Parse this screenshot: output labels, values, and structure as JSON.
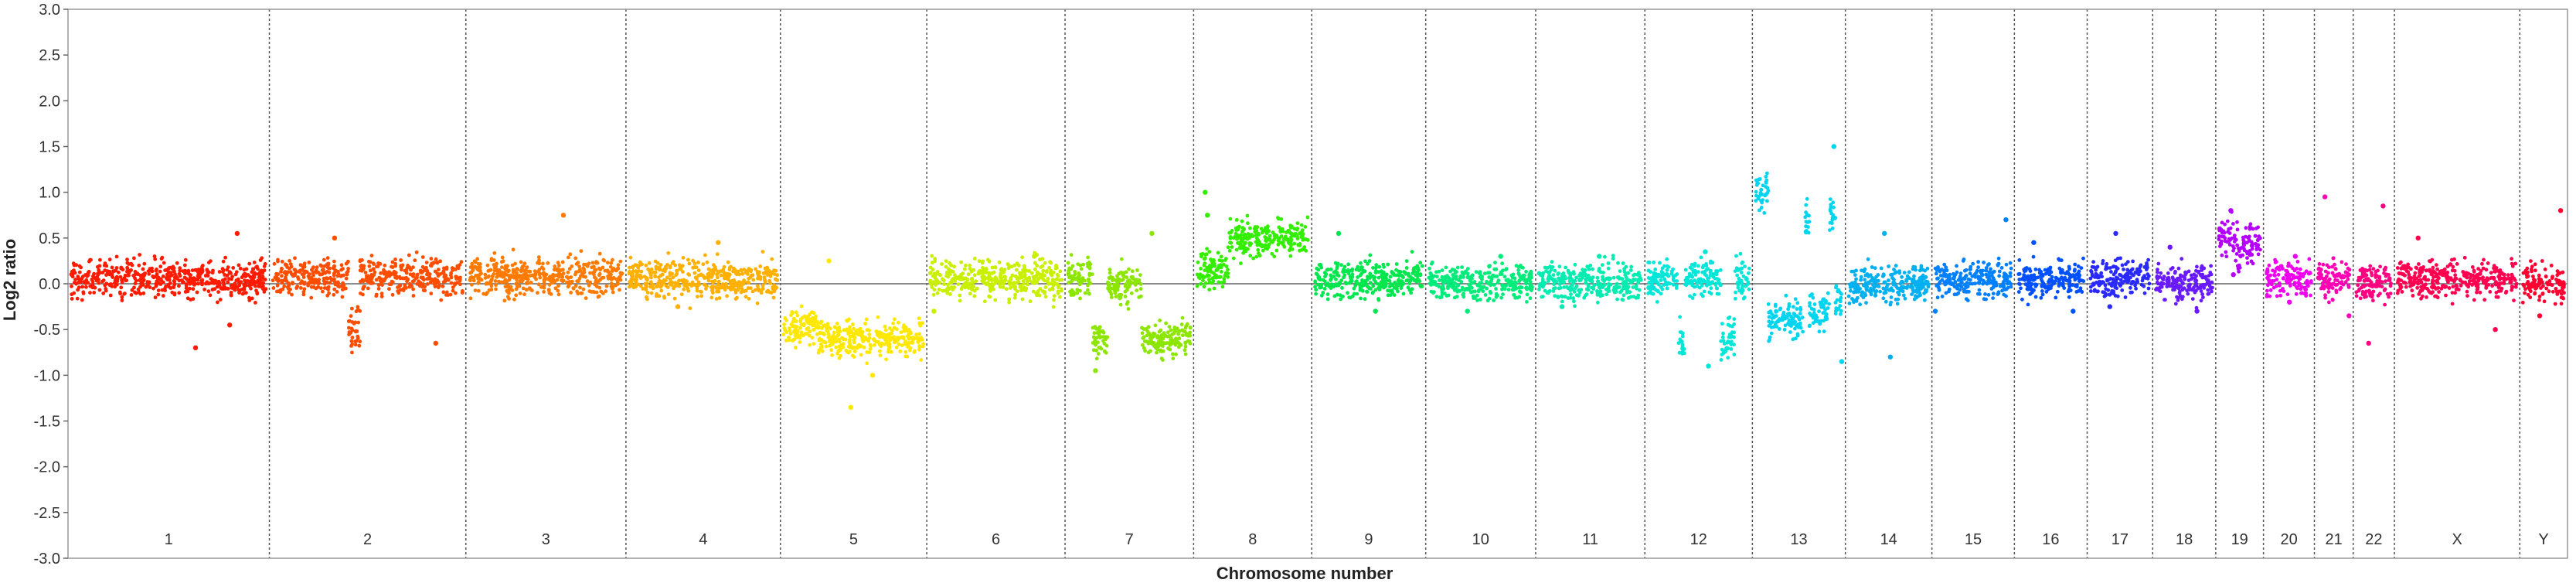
{
  "chart_data": {
    "type": "scatter",
    "xlabel": "Chromosome number",
    "ylabel": "Log2 ratio",
    "ylim": [
      -3.0,
      3.0
    ],
    "yticks": [
      "3.0",
      "2.5",
      "2.0",
      "1.5",
      "1.0",
      "0.5",
      "0.0",
      "-0.5",
      "-1.0",
      "-1.5",
      "-2.0",
      "-2.5",
      "-3.0"
    ],
    "grid": "vertical dashed chromosome separators",
    "baseline": 0.0,
    "chromosomes": [
      {
        "name": "1",
        "size": 249,
        "color": "#ff1a00",
        "segments": [
          {
            "start": 0.0,
            "end": 1.0,
            "value": 0.05
          }
        ],
        "outliers": [
          0.55,
          -0.7,
          -0.45
        ]
      },
      {
        "name": "2",
        "size": 243,
        "color": "#ff4d00",
        "segments": [
          {
            "start": 0.0,
            "end": 0.4,
            "value": 0.08
          },
          {
            "start": 0.4,
            "end": 0.46,
            "value": -0.5
          },
          {
            "start": 0.46,
            "end": 1.0,
            "value": 0.08
          }
        ],
        "outliers": [
          0.5,
          -0.65
        ]
      },
      {
        "name": "3",
        "size": 198,
        "color": "#ff7a00",
        "segments": [
          {
            "start": 0.0,
            "end": 1.0,
            "value": 0.08
          }
        ],
        "outliers": [
          0.75
        ]
      },
      {
        "name": "4",
        "size": 191,
        "color": "#ffb000",
        "segments": [
          {
            "start": 0.0,
            "end": 1.0,
            "value": 0.05
          }
        ],
        "outliers": [
          0.45,
          -0.25
        ]
      },
      {
        "name": "5",
        "size": 181,
        "color": "#ffe800",
        "segments": [
          {
            "start": 0.0,
            "end": 0.25,
            "value": -0.45
          },
          {
            "start": 0.25,
            "end": 1.0,
            "value": -0.6
          }
        ],
        "outliers": [
          0.25,
          -1.35,
          -1.0
        ]
      },
      {
        "name": "6",
        "size": 171,
        "color": "#c8f000",
        "segments": [
          {
            "start": 0.0,
            "end": 1.0,
            "value": 0.05
          }
        ],
        "outliers": [
          0.3,
          -0.3
        ]
      },
      {
        "name": "7",
        "size": 159,
        "color": "#8ce600",
        "segments": [
          {
            "start": 0.0,
            "end": 0.2,
            "value": 0.05
          },
          {
            "start": 0.2,
            "end": 0.32,
            "value": -0.6
          },
          {
            "start": 0.32,
            "end": 0.6,
            "value": 0.0
          },
          {
            "start": 0.6,
            "end": 1.0,
            "value": -0.6
          }
        ],
        "outliers": [
          0.55,
          -0.95
        ]
      },
      {
        "name": "8",
        "size": 146,
        "color": "#33ee00",
        "segments": [
          {
            "start": 0.0,
            "end": 0.28,
            "value": 0.15
          },
          {
            "start": 0.28,
            "end": 1.0,
            "value": 0.5
          }
        ],
        "outliers": [
          1.0,
          0.75
        ]
      },
      {
        "name": "9",
        "size": 141,
        "color": "#00e64d",
        "segments": [
          {
            "start": 0.0,
            "end": 1.0,
            "value": 0.05
          }
        ],
        "outliers": [
          0.55,
          -0.3
        ]
      },
      {
        "name": "10",
        "size": 136,
        "color": "#00ec7a",
        "segments": [
          {
            "start": 0.0,
            "end": 1.0,
            "value": 0.02
          }
        ],
        "outliers": [
          0.3,
          -0.3
        ]
      },
      {
        "name": "11",
        "size": 135,
        "color": "#00ecb0",
        "segments": [
          {
            "start": 0.0,
            "end": 1.0,
            "value": 0.02
          }
        ],
        "outliers": [
          0.3,
          -0.25
        ]
      },
      {
        "name": "12",
        "size": 133,
        "color": "#00e6d8",
        "segments": [
          {
            "start": 0.0,
            "end": 0.3,
            "value": 0.05
          },
          {
            "start": 0.3,
            "end": 0.36,
            "value": -0.6
          },
          {
            "start": 0.36,
            "end": 0.72,
            "value": 0.05
          },
          {
            "start": 0.72,
            "end": 0.86,
            "value": -0.6
          },
          {
            "start": 0.86,
            "end": 1.0,
            "value": 0.05
          }
        ],
        "outliers": [
          0.35,
          -0.9
        ]
      },
      {
        "name": "13",
        "size": 115,
        "color": "#00d5f0",
        "segments": [
          {
            "start": 0.0,
            "end": 0.15,
            "value": 1.0
          },
          {
            "start": 0.15,
            "end": 0.55,
            "value": -0.4
          },
          {
            "start": 0.55,
            "end": 0.62,
            "value": 0.7
          },
          {
            "start": 0.62,
            "end": 0.85,
            "value": -0.3
          },
          {
            "start": 0.85,
            "end": 0.92,
            "value": 0.75
          },
          {
            "start": 0.92,
            "end": 1.0,
            "value": -0.2
          }
        ],
        "outliers": [
          1.5,
          -0.85
        ]
      },
      {
        "name": "14",
        "size": 107,
        "color": "#00b0f0",
        "segments": [
          {
            "start": 0.0,
            "end": 1.0,
            "value": 0.0
          }
        ],
        "outliers": [
          0.55,
          -0.8
        ]
      },
      {
        "name": "15",
        "size": 102,
        "color": "#0080ff",
        "segments": [
          {
            "start": 0.0,
            "end": 1.0,
            "value": 0.05
          }
        ],
        "outliers": [
          0.7,
          -0.3
        ]
      },
      {
        "name": "16",
        "size": 90,
        "color": "#0050ff",
        "segments": [
          {
            "start": 0.0,
            "end": 1.0,
            "value": 0.05
          }
        ],
        "outliers": [
          0.45,
          -0.3
        ]
      },
      {
        "name": "17",
        "size": 81,
        "color": "#2a2aff",
        "segments": [
          {
            "start": 0.0,
            "end": 1.0,
            "value": 0.08
          }
        ],
        "outliers": [
          0.55,
          -0.25
        ]
      },
      {
        "name": "18",
        "size": 78,
        "color": "#6a1aff",
        "segments": [
          {
            "start": 0.0,
            "end": 1.0,
            "value": 0.0
          }
        ],
        "outliers": [
          0.4,
          -0.3
        ]
      },
      {
        "name": "19",
        "size": 59,
        "color": "#b400ff",
        "segments": [
          {
            "start": 0.0,
            "end": 0.45,
            "value": 0.5
          },
          {
            "start": 0.45,
            "end": 0.52,
            "value": 0.25
          },
          {
            "start": 0.52,
            "end": 1.0,
            "value": 0.45
          }
        ],
        "outliers": [
          0.8,
          0.1
        ]
      },
      {
        "name": "20",
        "size": 63,
        "color": "#ee00ee",
        "segments": [
          {
            "start": 0.0,
            "end": 1.0,
            "value": 0.05
          }
        ],
        "outliers": [
          0.3,
          -0.2
        ]
      },
      {
        "name": "21",
        "size": 48,
        "color": "#ff00b4",
        "segments": [
          {
            "start": 0.0,
            "end": 1.0,
            "value": 0.05
          }
        ],
        "outliers": [
          0.95,
          -0.35
        ]
      },
      {
        "name": "22",
        "size": 51,
        "color": "#ff0080",
        "segments": [
          {
            "start": 0.0,
            "end": 1.0,
            "value": 0.02
          }
        ],
        "outliers": [
          0.85,
          -0.65
        ]
      },
      {
        "name": "X",
        "size": 155,
        "color": "#ff0050",
        "segments": [
          {
            "start": 0.0,
            "end": 1.0,
            "value": 0.05
          }
        ],
        "outliers": [
          0.5,
          -0.5
        ]
      },
      {
        "name": "Y",
        "size": 59,
        "color": "#ff0030",
        "segments": [
          {
            "start": 0.0,
            "end": 1.0,
            "value": 0.0
          }
        ],
        "outliers": [
          0.8,
          -0.35
        ]
      }
    ]
  }
}
